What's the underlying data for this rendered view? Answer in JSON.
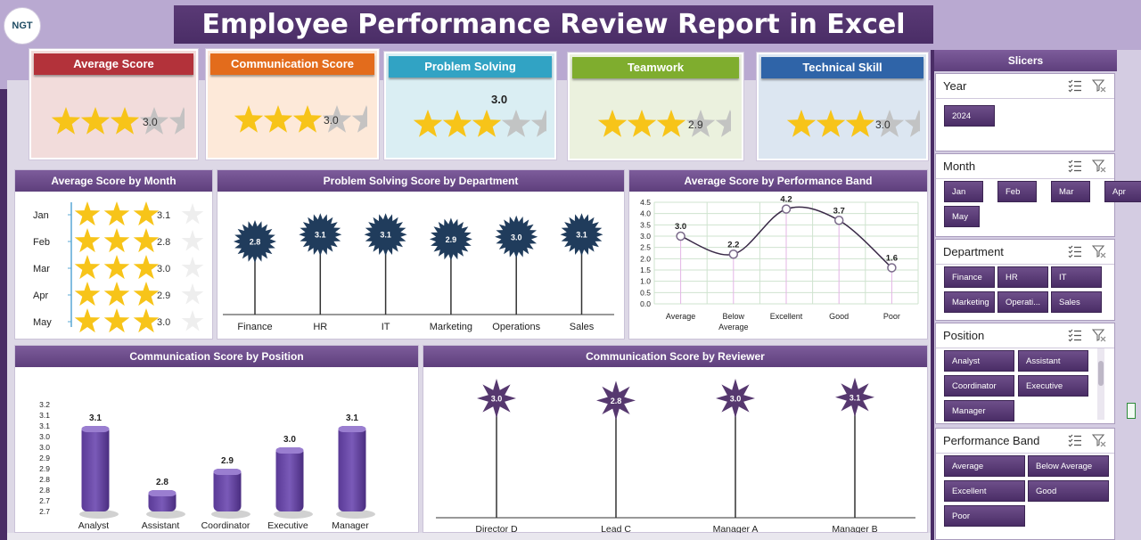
{
  "title": "Employee Performance Review Report in Excel",
  "logo_text": "NGT",
  "colors": {
    "purple_dark": "#4a2d66",
    "purple_mid": "#6f4d8d",
    "star_gold": "#f7c419",
    "star_grey": "#bfbfbf"
  },
  "kpis": [
    {
      "id": "average",
      "label": "Average Score",
      "value": "3.0",
      "stars": 3,
      "head_color": "#b3323a",
      "body_color": "#f2dcdb"
    },
    {
      "id": "communication",
      "label": "Communication Score",
      "value": "3.0",
      "stars": 3,
      "head_color": "#e36c1c",
      "body_color": "#fde9d9"
    },
    {
      "id": "problem",
      "label": "Problem Solving",
      "value": "3.0",
      "stars": 3,
      "head_color": "#31a3c4",
      "body_color": "#daeef3"
    },
    {
      "id": "teamwork",
      "label": "Teamwork",
      "value": "2.9",
      "stars": 3,
      "head_color": "#7fad2e",
      "body_color": "#ebf1de"
    },
    {
      "id": "technical",
      "label": "Technical Skill",
      "value": "3.0",
      "stars": 3,
      "head_color": "#2f64a8",
      "body_color": "#dce6f1"
    }
  ],
  "chart_data": [
    {
      "id": "by_month",
      "type": "table",
      "title": "Average Score by Month",
      "categories": [
        "Jan",
        "Feb",
        "Mar",
        "Apr",
        "May"
      ],
      "values": [
        3.1,
        2.8,
        3.0,
        2.9,
        3.0
      ],
      "value_labels": [
        "3.1",
        "2.8",
        "3.0",
        "2.9",
        "3.0"
      ],
      "stars": 3,
      "max_stars": 5
    },
    {
      "id": "problem_by_dept",
      "type": "bar",
      "title": "Problem Solving Score  by Department",
      "categories": [
        "Finance",
        "HR",
        "IT",
        "Marketing",
        "Operations",
        "Sales"
      ],
      "values": [
        2.8,
        3.1,
        3.1,
        2.9,
        3.0,
        3.1
      ],
      "value_labels": [
        "2.8",
        "3.1",
        "3.1",
        "2.9",
        "3.0",
        "3.1"
      ]
    },
    {
      "id": "by_band",
      "type": "line",
      "title": "Average Score by Performance Band",
      "categories": [
        "Average",
        "Below\nAverage",
        "Excellent",
        "Good",
        "Poor"
      ],
      "values": [
        3.0,
        2.2,
        4.2,
        3.7,
        1.6
      ],
      "value_labels": [
        "3.0",
        "2.2",
        "4.2",
        "3.7",
        "1.6"
      ],
      "ylim": [
        0,
        4.5
      ],
      "yticks": [
        "0.0",
        "0.5",
        "1.0",
        "1.5",
        "2.0",
        "2.5",
        "3.0",
        "3.5",
        "4.0",
        "4.5"
      ],
      "grid": true
    },
    {
      "id": "comm_by_position",
      "type": "bar",
      "title": "Communication Score  by Position",
      "categories": [
        "Analyst",
        "Assistant",
        "Coordinator",
        "Executive",
        "Manager"
      ],
      "values": [
        3.1,
        2.8,
        2.9,
        3.0,
        3.1
      ],
      "value_labels": [
        "3.1",
        "2.8",
        "2.9",
        "3.0",
        "3.1"
      ],
      "ylim": [
        2.7,
        3.2
      ],
      "yticks": [
        "2.7",
        "2.7",
        "2.8",
        "2.8",
        "2.9",
        "2.9",
        "3.0",
        "3.0",
        "3.1",
        "3.1",
        "3.2"
      ]
    },
    {
      "id": "comm_by_reviewer",
      "type": "bar",
      "title": "Communication Score  by Reviewer",
      "categories": [
        "Director D",
        "Lead C",
        "Manager A",
        "Manager B"
      ],
      "values": [
        3.0,
        2.8,
        3.0,
        3.1
      ],
      "value_labels": [
        "3.0",
        "2.8",
        "3.0",
        "3.1"
      ]
    }
  ],
  "slicers": {
    "title": "Slicers",
    "groups": [
      {
        "title": "Year",
        "items": [
          "2024"
        ]
      },
      {
        "title": "Month",
        "items": [
          "Jan",
          "Feb",
          "Mar",
          "Apr",
          "May"
        ]
      },
      {
        "title": "Department",
        "items": [
          "Finance",
          "HR",
          "IT",
          "Marketing",
          "Operati...",
          "Sales"
        ]
      },
      {
        "title": "Position",
        "items": [
          "Analyst",
          "Assistant",
          "Coordinator",
          "Executive",
          "Manager"
        ]
      },
      {
        "title": "Performance Band",
        "items": [
          "Average",
          "Below Average",
          "Excellent",
          "Good",
          "Poor"
        ]
      }
    ]
  }
}
